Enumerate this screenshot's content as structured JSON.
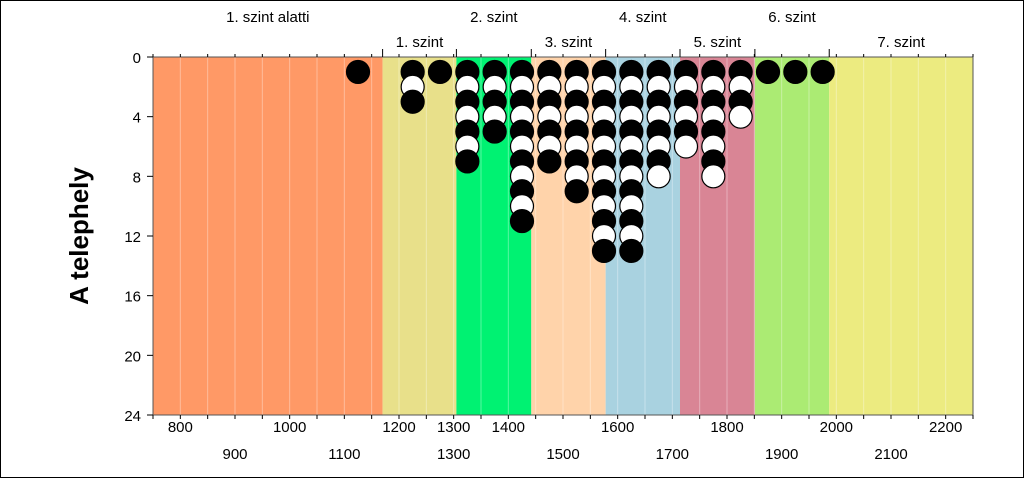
{
  "chart_data": {
    "type": "scatter",
    "ylabel": "A telephely",
    "xlim": [
      750,
      2250
    ],
    "ylim": [
      0,
      24
    ],
    "y_inverted": true,
    "x_ticks_row1": [
      800,
      1000,
      1200,
      1300,
      1400,
      1600,
      1800,
      2000,
      2200
    ],
    "x_ticks_row2": [
      900,
      1100,
      1300,
      1500,
      1700,
      1900,
      2100
    ],
    "x_tick_labels_row1": [
      "800",
      "1000",
      "1200",
      "1300",
      "1400",
      "1600",
      "1800",
      "2000",
      "2200"
    ],
    "x_tick_labels_row2": [
      "900",
      "1100",
      "1300",
      "1500",
      "1700",
      "1900",
      "2100"
    ],
    "y_ticks": [
      0,
      4,
      8,
      12,
      16,
      20,
      24
    ],
    "y_tick_labels": [
      "0",
      "4",
      "8",
      "12",
      "16",
      "20",
      "24"
    ],
    "x_minor_step": 50,
    "levels": [
      {
        "label": "1. szint alatti",
        "x_start": 750,
        "x_end": 1170,
        "color": "#FF9966",
        "label_row": "top"
      },
      {
        "label": "1. szint",
        "x_start": 1170,
        "x_end": 1305,
        "color": "#E8E08A",
        "label_row": "bottom"
      },
      {
        "label": "2. szint",
        "x_start": 1305,
        "x_end": 1442,
        "color": "#00F272",
        "label_row": "top"
      },
      {
        "label": "3. szint",
        "x_start": 1442,
        "x_end": 1578,
        "color": "#FFD3AA",
        "label_row": "bottom"
      },
      {
        "label": "4. szint",
        "x_start": 1578,
        "x_end": 1714,
        "color": "#A9D2E0",
        "label_row": "top"
      },
      {
        "label": "5. szint",
        "x_start": 1714,
        "x_end": 1851,
        "color": "#D98595",
        "label_row": "bottom"
      },
      {
        "label": "6. szint",
        "x_start": 1851,
        "x_end": 1987,
        "color": "#ABEB73",
        "label_row": "top"
      },
      {
        "label": "7. szint",
        "x_start": 1987,
        "x_end": 2250,
        "color": "#ECEB80",
        "label_row": "bottom"
      }
    ],
    "marker_colors": {
      "odd": "#000000",
      "even": "#ffffff"
    },
    "columns": [
      {
        "x": 1125,
        "count": 1
      },
      {
        "x": 1225,
        "count": 3
      },
      {
        "x": 1275,
        "count": 1
      },
      {
        "x": 1325,
        "count": 7
      },
      {
        "x": 1375,
        "count": 5
      },
      {
        "x": 1425,
        "count": 11
      },
      {
        "x": 1475,
        "count": 7
      },
      {
        "x": 1525,
        "count": 9
      },
      {
        "x": 1575,
        "count": 13
      },
      {
        "x": 1625,
        "count": 13
      },
      {
        "x": 1675,
        "count": 8
      },
      {
        "x": 1725,
        "count": 6
      },
      {
        "x": 1775,
        "count": 8
      },
      {
        "x": 1825,
        "count": 4
      },
      {
        "x": 1875,
        "count": 1
      },
      {
        "x": 1925,
        "count": 1
      },
      {
        "x": 1975,
        "count": 1
      }
    ]
  }
}
